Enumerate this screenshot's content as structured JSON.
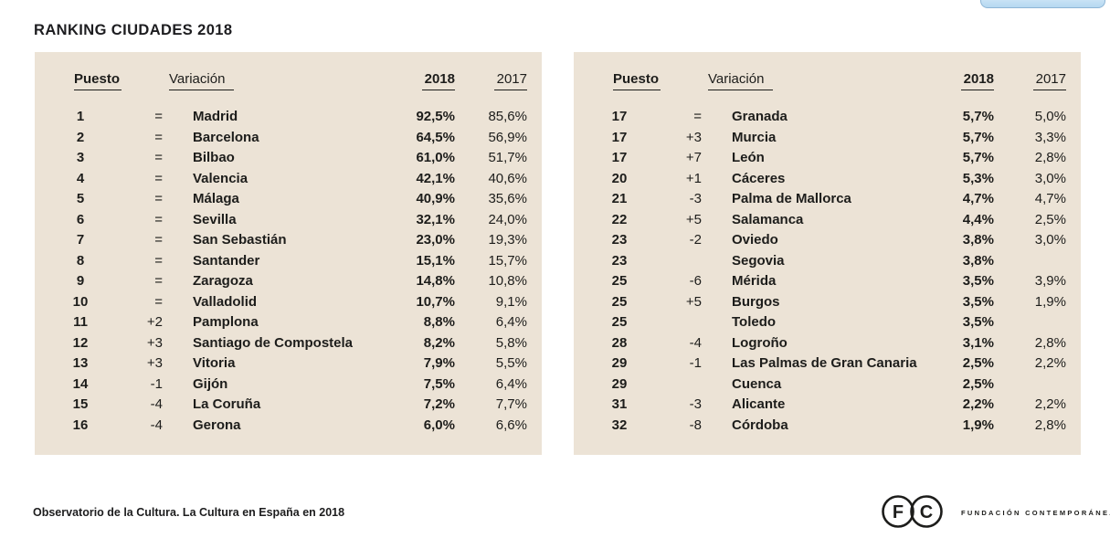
{
  "title": "RANKING CIUDADES 2018",
  "colors": {
    "panel_background": "#ece3d6",
    "text": "#1d1d1b",
    "partial_button_fill": "#b5d8f0",
    "partial_button_border": "#8fb6d6"
  },
  "columns": {
    "rank": "Puesto",
    "variation": "Variación",
    "y2018": "2018",
    "y2017": "2017"
  },
  "tables": [
    {
      "name": "left",
      "rows": [
        {
          "rank": "1",
          "variation": "=",
          "city": "Madrid",
          "v2018": "92,5%",
          "v2017": "85,6%"
        },
        {
          "rank": "2",
          "variation": "=",
          "city": "Barcelona",
          "v2018": "64,5%",
          "v2017": "56,9%"
        },
        {
          "rank": "3",
          "variation": "=",
          "city": "Bilbao",
          "v2018": "61,0%",
          "v2017": "51,7%"
        },
        {
          "rank": "4",
          "variation": "=",
          "city": "Valencia",
          "v2018": "42,1%",
          "v2017": "40,6%"
        },
        {
          "rank": "5",
          "variation": "=",
          "city": "Málaga",
          "v2018": "40,9%",
          "v2017": "35,6%"
        },
        {
          "rank": "6",
          "variation": "=",
          "city": "Sevilla",
          "v2018": "32,1%",
          "v2017": "24,0%"
        },
        {
          "rank": "7",
          "variation": "=",
          "city": "San Sebastián",
          "v2018": "23,0%",
          "v2017": "19,3%"
        },
        {
          "rank": "8",
          "variation": "=",
          "city": "Santander",
          "v2018": "15,1%",
          "v2017": "15,7%"
        },
        {
          "rank": "9",
          "variation": "=",
          "city": "Zaragoza",
          "v2018": "14,8%",
          "v2017": "10,8%"
        },
        {
          "rank": "10",
          "variation": "=",
          "city": "Valladolid",
          "v2018": "10,7%",
          "v2017": "9,1%"
        },
        {
          "rank": "11",
          "variation": "+2",
          "city": "Pamplona",
          "v2018": "8,8%",
          "v2017": "6,4%"
        },
        {
          "rank": "12",
          "variation": "+3",
          "city": "Santiago de Compostela",
          "v2018": "8,2%",
          "v2017": "5,8%"
        },
        {
          "rank": "13",
          "variation": "+3",
          "city": "Vitoria",
          "v2018": "7,9%",
          "v2017": "5,5%"
        },
        {
          "rank": "14",
          "variation": "-1",
          "city": "Gijón",
          "v2018": "7,5%",
          "v2017": "6,4%"
        },
        {
          "rank": "15",
          "variation": "-4",
          "city": "La Coruña",
          "v2018": "7,2%",
          "v2017": "7,7%"
        },
        {
          "rank": "16",
          "variation": "-4",
          "city": "Gerona",
          "v2018": "6,0%",
          "v2017": "6,6%"
        }
      ]
    },
    {
      "name": "right",
      "rows": [
        {
          "rank": "17",
          "variation": "=",
          "city": "Granada",
          "v2018": "5,7%",
          "v2017": "5,0%"
        },
        {
          "rank": "17",
          "variation": "+3",
          "city": "Murcia",
          "v2018": "5,7%",
          "v2017": "3,3%"
        },
        {
          "rank": "17",
          "variation": "+7",
          "city": "León",
          "v2018": "5,7%",
          "v2017": "2,8%"
        },
        {
          "rank": "20",
          "variation": "+1",
          "city": "Cáceres",
          "v2018": "5,3%",
          "v2017": "3,0%"
        },
        {
          "rank": "21",
          "variation": "-3",
          "city": "Palma de Mallorca",
          "v2018": "4,7%",
          "v2017": "4,7%"
        },
        {
          "rank": "22",
          "variation": "+5",
          "city": "Salamanca",
          "v2018": "4,4%",
          "v2017": "2,5%"
        },
        {
          "rank": "23",
          "variation": "-2",
          "city": "Oviedo",
          "v2018": "3,8%",
          "v2017": "3,0%"
        },
        {
          "rank": "23",
          "variation": "",
          "city": "Segovia",
          "v2018": "3,8%",
          "v2017": ""
        },
        {
          "rank": "25",
          "variation": "-6",
          "city": "Mérida",
          "v2018": "3,5%",
          "v2017": "3,9%"
        },
        {
          "rank": "25",
          "variation": "+5",
          "city": "Burgos",
          "v2018": "3,5%",
          "v2017": "1,9%"
        },
        {
          "rank": "25",
          "variation": "",
          "city": "Toledo",
          "v2018": "3,5%",
          "v2017": ""
        },
        {
          "rank": "28",
          "variation": "-4",
          "city": "Logroño",
          "v2018": "3,1%",
          "v2017": "2,8%"
        },
        {
          "rank": "29",
          "variation": "-1",
          "city": "Las Palmas de Gran Canaria",
          "v2018": "2,5%",
          "v2017": "2,2%"
        },
        {
          "rank": "29",
          "variation": "",
          "city": "Cuenca",
          "v2018": "2,5%",
          "v2017": ""
        },
        {
          "rank": "31",
          "variation": "-3",
          "city": "Alicante",
          "v2018": "2,2%",
          "v2017": "2,2%"
        },
        {
          "rank": "32",
          "variation": "-8",
          "city": "Córdoba",
          "v2018": "1,9%",
          "v2017": "2,8%"
        }
      ]
    }
  ],
  "footer": {
    "source": "Observatorio de la Cultura. La Cultura en España en 2018"
  },
  "logo": {
    "letter_f": "F",
    "letter_c": "C",
    "brand": "FUNDACIÓN CONTEMPORÁNEA"
  }
}
